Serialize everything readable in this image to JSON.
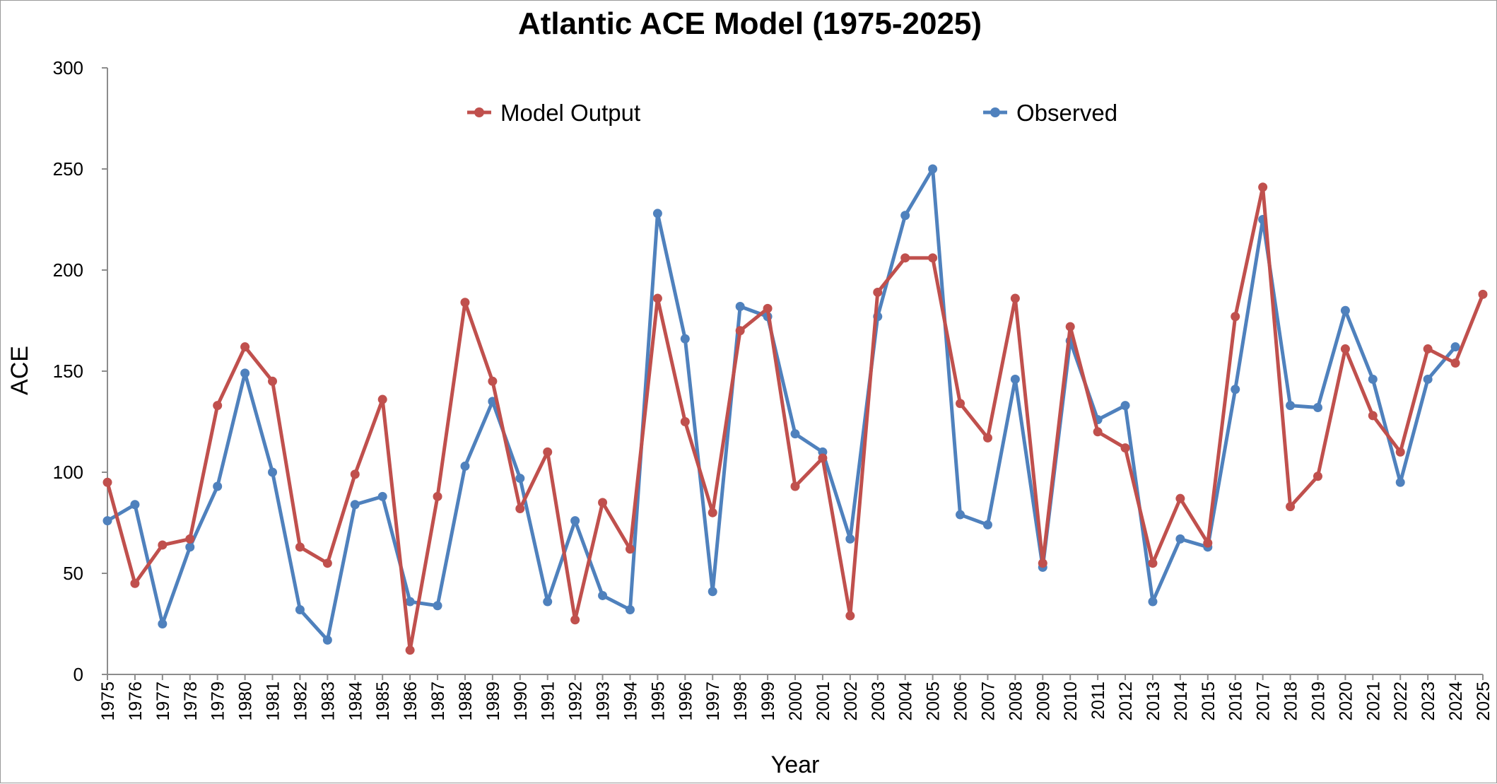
{
  "chart_data": {
    "type": "line",
    "title": "Atlantic ACE Model (1975-2025)",
    "xlabel": "Year",
    "ylabel": "ACE",
    "ylim": [
      0,
      300
    ],
    "yticks": [
      0,
      50,
      100,
      150,
      200,
      250,
      300
    ],
    "grid": false,
    "legend_position": "top",
    "x": [
      1975,
      1976,
      1977,
      1978,
      1979,
      1980,
      1981,
      1982,
      1983,
      1984,
      1985,
      1986,
      1987,
      1988,
      1989,
      1990,
      1991,
      1992,
      1993,
      1994,
      1995,
      1996,
      1997,
      1998,
      1999,
      2000,
      2001,
      2002,
      2003,
      2004,
      2005,
      2006,
      2007,
      2008,
      2009,
      2010,
      2011,
      2012,
      2013,
      2014,
      2015,
      2016,
      2017,
      2018,
      2019,
      2020,
      2021,
      2022,
      2023,
      2024,
      2025
    ],
    "series": [
      {
        "name": "Model Output",
        "color": "#c0504d",
        "values": [
          95,
          45,
          64,
          67,
          133,
          162,
          145,
          63,
          55,
          99,
          136,
          12,
          88,
          184,
          145,
          82,
          110,
          27,
          85,
          62,
          186,
          125,
          80,
          170,
          181,
          93,
          107,
          29,
          189,
          206,
          206,
          134,
          117,
          186,
          55,
          172,
          120,
          112,
          55,
          87,
          65,
          177,
          241,
          83,
          98,
          161,
          128,
          110,
          161,
          154,
          188
        ]
      },
      {
        "name": "Observed",
        "color": "#4f81bd",
        "values": [
          76,
          84,
          25,
          63,
          93,
          149,
          100,
          32,
          17,
          84,
          88,
          36,
          34,
          103,
          135,
          97,
          36,
          76,
          39,
          32,
          228,
          166,
          41,
          182,
          177,
          119,
          110,
          67,
          177,
          227,
          250,
          79,
          74,
          146,
          53,
          165,
          126,
          133,
          36,
          67,
          63,
          141,
          225,
          133,
          132,
          180,
          146,
          95,
          146,
          162,
          null
        ]
      }
    ]
  }
}
